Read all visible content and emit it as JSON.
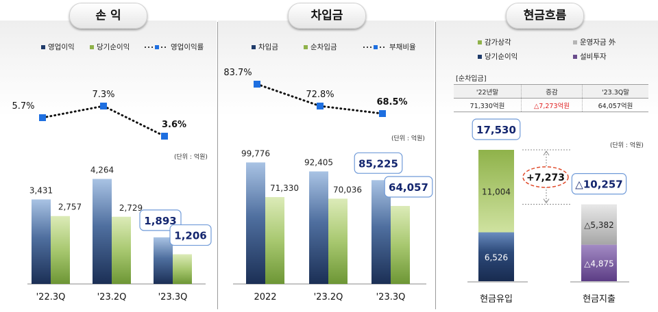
{
  "panels": {
    "pl": {
      "title": "손 익",
      "unit": "(단위 : 억원)",
      "legend": {
        "op": "영업이익",
        "net": "당기순이익",
        "margin": "영업이익률"
      }
    },
    "borrow": {
      "title": "차입금",
      "unit": "(단위 : 억원)",
      "legend": {
        "debt": "차입금",
        "netdebt": "순차입금",
        "ratio": "부채비율"
      }
    },
    "cf": {
      "title": "현금흐름",
      "unit": "(단위 : 억원)",
      "legend": {
        "dep": "감가상각",
        "wc": "운영자금 外",
        "ni": "당기순이익",
        "capex": "설비투자"
      },
      "table": {
        "label": "[순차입금]",
        "headers": [
          "'22년말",
          "증감",
          "'23.3Q말"
        ],
        "values": [
          "71,330억원",
          "△7,273억원",
          "64,057억원"
        ]
      }
    }
  },
  "chart_data": [
    {
      "type": "bar",
      "title": "손 익",
      "categories": [
        "'22.3Q",
        "'23.2Q",
        "'23.3Q"
      ],
      "series": [
        {
          "name": "영업이익",
          "values": [
            3431,
            4264,
            1893
          ],
          "labels": [
            "3,431",
            "4,264",
            "1,893"
          ],
          "color": "#1f3b6a"
        },
        {
          "name": "당기순이익",
          "values": [
            2757,
            2729,
            1206
          ],
          "labels": [
            "2,757",
            "2,729",
            "1,206"
          ],
          "color": "#8fb24a"
        },
        {
          "name": "영업이익률",
          "type": "line",
          "values": [
            5.7,
            7.3,
            3.6
          ],
          "labels": [
            "5.7%",
            "7.3%",
            "3.6%"
          ],
          "color": "#1e6fe0"
        }
      ],
      "ylim": [
        0,
        4500
      ],
      "legend": "top",
      "grid": false
    },
    {
      "type": "bar",
      "title": "차입금",
      "categories": [
        "2022",
        "'23.2Q",
        "'23.3Q"
      ],
      "series": [
        {
          "name": "차입금",
          "values": [
            99776,
            92405,
            85225
          ],
          "labels": [
            "99,776",
            "92,405",
            "85,225"
          ],
          "color": "#1f3b6a"
        },
        {
          "name": "순차입금",
          "values": [
            71330,
            70036,
            64057
          ],
          "labels": [
            "71,330",
            "70,036",
            "64,057"
          ],
          "color": "#8fb24a"
        },
        {
          "name": "부채비율",
          "type": "line",
          "values": [
            83.7,
            72.8,
            68.5
          ],
          "labels": [
            "83.7%",
            "72.8%",
            "68.5%"
          ],
          "color": "#1e6fe0"
        }
      ],
      "ylim": [
        0,
        100000
      ],
      "legend": "top",
      "grid": false
    },
    {
      "type": "bar",
      "title": "현금흐름",
      "categories": [
        "현금유입",
        "현금지출"
      ],
      "stacks": [
        {
          "category": "현금유입",
          "total": 17530,
          "total_label": "17,530",
          "segments": [
            {
              "name": "당기순이익",
              "value": 6526,
              "label": "6,526",
              "color": "#1f3b6a"
            },
            {
              "name": "감가상각",
              "value": 11004,
              "label": "11,004",
              "color": "#8fb24a"
            }
          ]
        },
        {
          "category": "현금지출",
          "total": 10257,
          "total_label": "△10,257",
          "segments": [
            {
              "name": "설비투자",
              "value": 4875,
              "label": "△4,875",
              "color": "#6a4c8c"
            },
            {
              "name": "운영자금 外",
              "value": 5382,
              "label": "△5,382",
              "color": "#b5b5b5"
            }
          ]
        }
      ],
      "annotation": "+7,273",
      "ylim": [
        0,
        17530
      ],
      "legend": "top",
      "grid": false
    }
  ]
}
